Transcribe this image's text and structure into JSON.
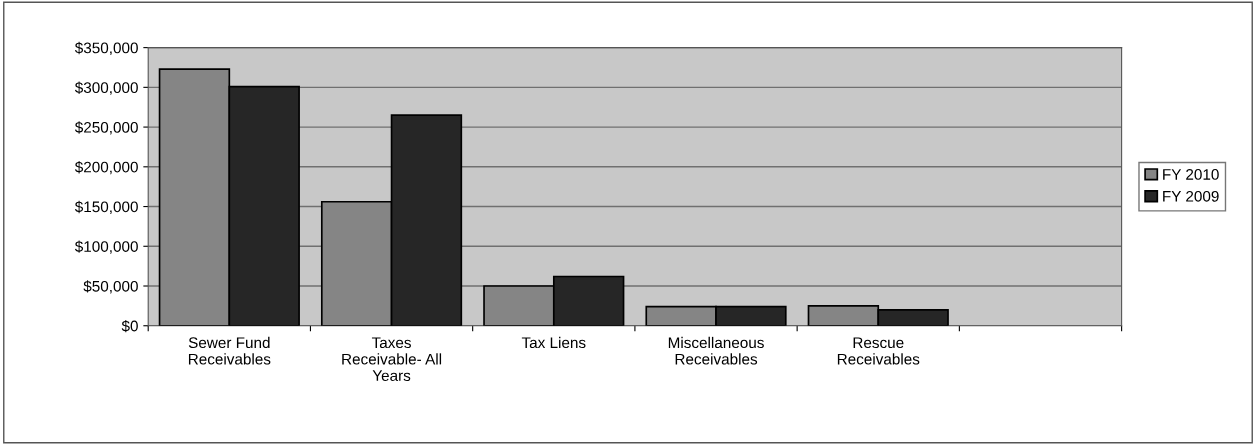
{
  "chart_data": {
    "type": "bar",
    "categories": [
      "Sewer Fund\nReceivables",
      "Taxes\nReceivable- All\nYears",
      "Tax Liens",
      "Miscellaneous\nReceivables",
      "Rescue\nReceivables",
      null
    ],
    "series": [
      {
        "name": "FY 2010",
        "color": "#858585",
        "values": [
          323000,
          156000,
          50000,
          24000,
          25000,
          null
        ]
      },
      {
        "name": "FY 2009",
        "color": "#262626",
        "values": [
          301000,
          265000,
          62000,
          24000,
          20000,
          null
        ]
      }
    ],
    "ylim": [
      0,
      350000
    ],
    "yticks": [
      {
        "value": 0,
        "label": "$0"
      },
      {
        "value": 50000,
        "label": "$50,000"
      },
      {
        "value": 100000,
        "label": "$100,000"
      },
      {
        "value": 150000,
        "label": "$150,000"
      },
      {
        "value": 200000,
        "label": "$200,000"
      },
      {
        "value": 250000,
        "label": "$250,000"
      },
      {
        "value": 300000,
        "label": "$300,000"
      },
      {
        "value": 350000,
        "label": "$350,000"
      }
    ],
    "grid": "y",
    "legend": "right"
  }
}
